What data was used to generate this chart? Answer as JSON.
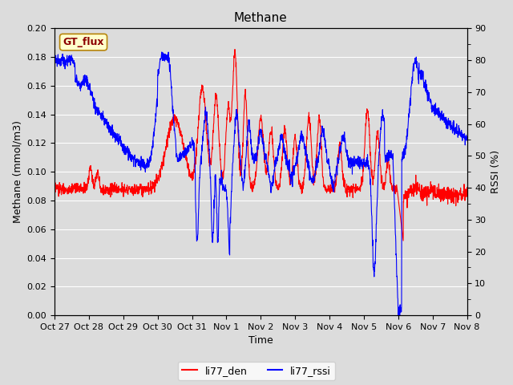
{
  "title": "Methane",
  "xlabel": "Time",
  "ylabel_left": "Methane (mmol/m3)",
  "ylabel_right": "RSSI (%)",
  "annotation": "GT_flux",
  "annotation_color": "#8B0000",
  "annotation_bg": "#FFFFCC",
  "annotation_border": "#B8860B",
  "legend_labels": [
    "li77_den",
    "li77_rssi"
  ],
  "legend_colors": [
    "red",
    "blue"
  ],
  "ylim_left": [
    0.0,
    0.2
  ],
  "ylim_right": [
    0,
    90
  ],
  "yticks_left": [
    0.0,
    0.02,
    0.04,
    0.06,
    0.08,
    0.1,
    0.12,
    0.14,
    0.16,
    0.18,
    0.2
  ],
  "yticks_right": [
    0,
    10,
    20,
    30,
    40,
    50,
    60,
    70,
    80,
    90
  ],
  "xtick_labels": [
    "Oct 27",
    "Oct 28",
    "Oct 29",
    "Oct 30",
    "Oct 31",
    "Nov 1",
    "Nov 2",
    "Nov 3",
    "Nov 4",
    "Nov 5",
    "Nov 6",
    "Nov 7",
    "Nov 8"
  ],
  "bg_color": "#DCDCDC",
  "line_color_den": "red",
  "line_color_rssi": "blue",
  "linewidth": 0.8
}
